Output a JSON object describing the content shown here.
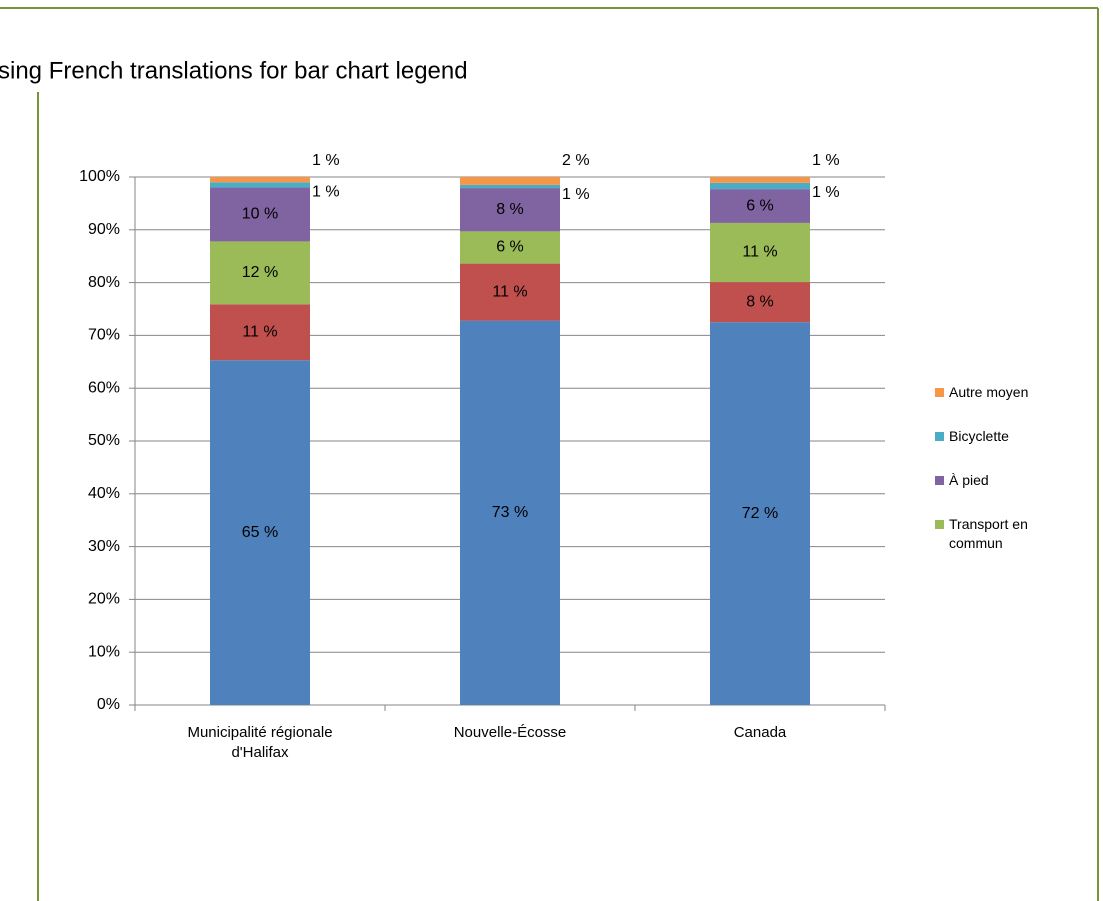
{
  "chart_data": {
    "type": "stacked_bar",
    "title": "sing French translations for bar chart legend",
    "categories": [
      "Municipalité régionale d'Halifax",
      "Nouvelle-Écosse",
      "Canada"
    ],
    "series": [
      {
        "color": "#4f81bd",
        "values": [
          65.3,
          72.8,
          72.5
        ],
        "value_labels": [
          "65 %",
          "73 %",
          "72 %"
        ]
      },
      {
        "color": "#c0504d",
        "values": [
          10.6,
          10.8,
          7.6
        ],
        "value_labels": [
          "11 %",
          "11 %",
          "8 %"
        ]
      },
      {
        "name": "Transport en commun",
        "color": "#9bbb59",
        "values": [
          11.9,
          6.1,
          11.2
        ],
        "value_labels": [
          "12 %",
          "6 %",
          "11 %"
        ]
      },
      {
        "name": "À pied",
        "color": "#8064a2",
        "values": [
          10.2,
          8.2,
          6.4
        ],
        "value_labels": [
          "10 %",
          "8 %",
          "6 %"
        ]
      },
      {
        "name": "Bicyclette",
        "color": "#4bacc6",
        "values": [
          1.0,
          0.6,
          1.2
        ],
        "value_labels": [
          "1 %",
          "1 %",
          "1 %"
        ]
      },
      {
        "name": "Autre moyen",
        "color": "#f79646",
        "values": [
          1.0,
          1.5,
          1.1
        ],
        "value_labels": [
          "1 %",
          "2 %",
          "1 %"
        ]
      }
    ],
    "ylim": [
      0,
      100
    ],
    "yticks": [
      {
        "value": 0,
        "label": "0%"
      },
      {
        "value": 10,
        "label": "10%"
      },
      {
        "value": 20,
        "label": "20%"
      },
      {
        "value": 30,
        "label": "30%"
      },
      {
        "value": 40,
        "label": "40%"
      },
      {
        "value": 50,
        "label": "50%"
      },
      {
        "value": 60,
        "label": "60%"
      },
      {
        "value": 70,
        "label": "70%"
      },
      {
        "value": 80,
        "label": "80%"
      },
      {
        "value": 90,
        "label": "90%"
      },
      {
        "value": 100,
        "label": "100%"
      }
    ],
    "grid": true,
    "legend": "right"
  }
}
